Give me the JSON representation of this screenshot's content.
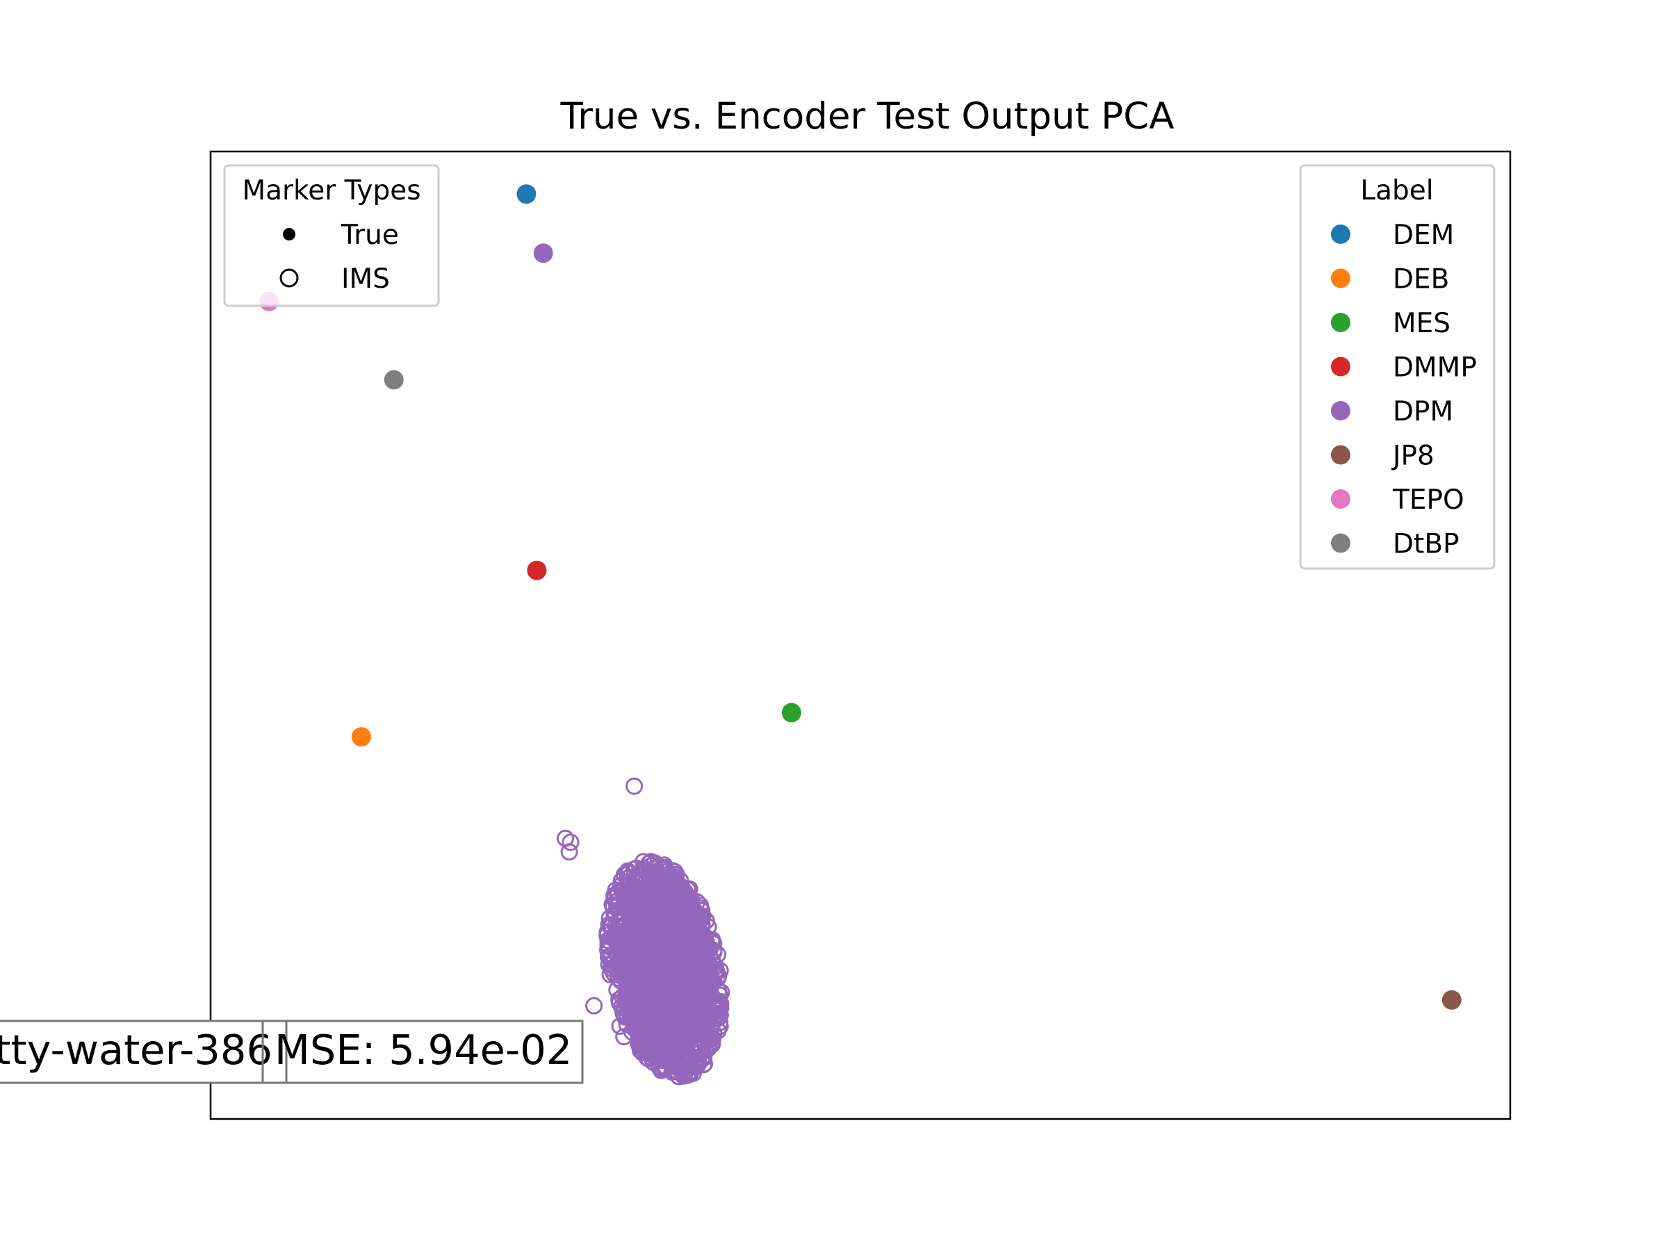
{
  "chart_data": {
    "type": "scatter",
    "title": "True vs. Encoder Test Output PCA",
    "xlabel": "",
    "ylabel": "",
    "axes_visible": false,
    "xlim": [
      0,
      100
    ],
    "ylim": [
      0,
      100
    ],
    "grid": false,
    "marker_legend": {
      "title": "Marker Types",
      "placement": "top-left",
      "entries": [
        {
          "label": "True",
          "style": "filled"
        },
        {
          "label": "IMS",
          "style": "hollow"
        }
      ]
    },
    "label_legend": {
      "title": "Label",
      "placement": "top-right",
      "entries": [
        {
          "label": "DEM",
          "color": "#1f77b4"
        },
        {
          "label": "DEB",
          "color": "#ff7f0e"
        },
        {
          "label": "MES",
          "color": "#2ca02c"
        },
        {
          "label": "DMMP",
          "color": "#d62728"
        },
        {
          "label": "DPM",
          "color": "#9467bd"
        },
        {
          "label": "JP8",
          "color": "#8c564b"
        },
        {
          "label": "TEPO",
          "color": "#e377c2"
        },
        {
          "label": "DtBP",
          "color": "#7f7f7f"
        }
      ]
    },
    "true_points": [
      {
        "label": "DEM",
        "x": 24.3,
        "y": 95.6
      },
      {
        "label": "DPM",
        "x": 25.6,
        "y": 89.5
      },
      {
        "label": "TEPO",
        "x": 4.5,
        "y": 84.5
      },
      {
        "label": "DtBP",
        "x": 14.1,
        "y": 76.4
      },
      {
        "label": "DMMP",
        "x": 25.1,
        "y": 56.7
      },
      {
        "label": "MES",
        "x": 44.7,
        "y": 42.0
      },
      {
        "label": "DEB",
        "x": 11.6,
        "y": 39.5
      },
      {
        "label": "JP8",
        "x": 95.5,
        "y": 12.3
      }
    ],
    "ims_series": {
      "label": "DPM",
      "marker": "hollow",
      "outliers": [
        {
          "x": 32.6,
          "y": 34.4
        },
        {
          "x": 27.3,
          "y": 29.0
        },
        {
          "x": 27.7,
          "y": 28.6
        },
        {
          "x": 27.6,
          "y": 27.6
        },
        {
          "x": 29.5,
          "y": 11.7
        },
        {
          "x": 31.5,
          "y": 9.6
        },
        {
          "x": 36.7,
          "y": 10.8
        },
        {
          "x": 31.8,
          "y": 8.5
        }
      ],
      "cluster": {
        "center_x": 34.8,
        "center_y": 15.5,
        "x_range": [
          30.3,
          39.6
        ],
        "y_range": [
          4.0,
          27.0
        ],
        "point_count": 900
      }
    },
    "annotations": [
      {
        "text": "tty-water-386",
        "placement": "bottom-left"
      },
      {
        "text": "",
        "placement": "bottom-left-separator"
      },
      {
        "text": "MSE: 5.94e-02",
        "placement": "bottom-left"
      }
    ]
  }
}
